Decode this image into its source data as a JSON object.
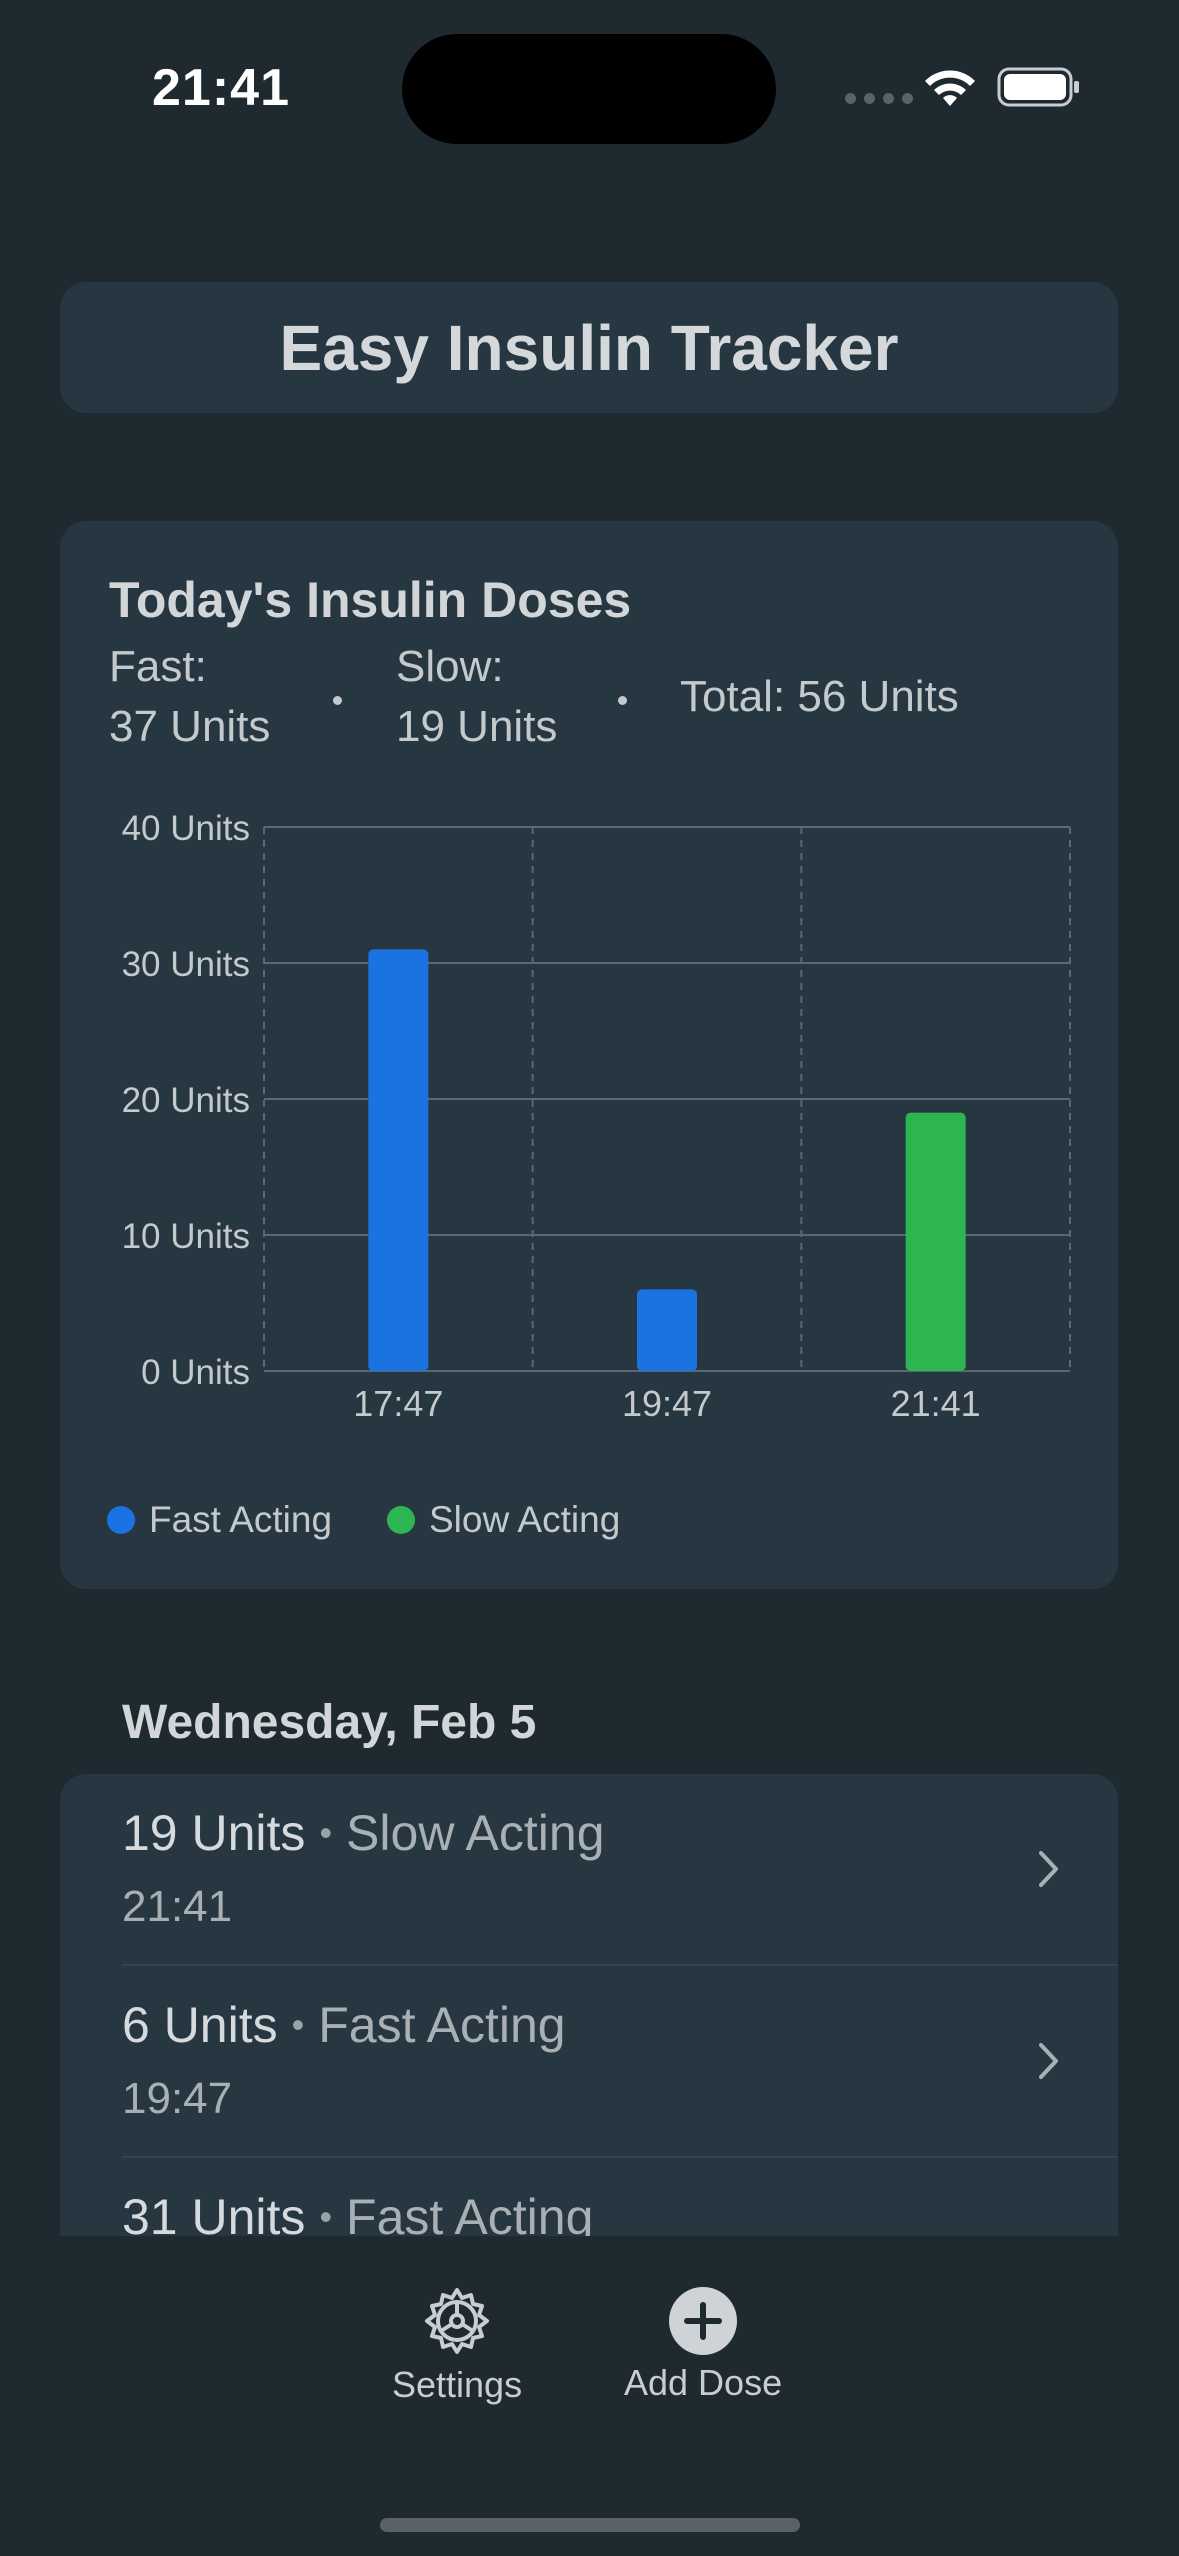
{
  "status_bar": {
    "time": "21:41"
  },
  "app": {
    "title": "Easy Insulin Tracker"
  },
  "summary": {
    "heading": "Today's Insulin Doses",
    "fast_label": "Fast:",
    "fast_value": "37 Units",
    "slow_label": "Slow:",
    "slow_value": "19 Units",
    "total": "Total: 56 Units"
  },
  "chart_data": {
    "type": "bar",
    "categories": [
      "17:47",
      "19:47",
      "21:41"
    ],
    "series": [
      {
        "name": "Fast Acting",
        "color": "#1a73e0",
        "values": [
          31,
          6,
          null
        ]
      },
      {
        "name": "Slow Acting",
        "color": "#2db552",
        "values": [
          null,
          null,
          19
        ]
      }
    ],
    "y_ticks": [
      "0 Units",
      "10 Units",
      "20 Units",
      "30 Units",
      "40 Units"
    ],
    "ylim": [
      0,
      40
    ],
    "grid": true,
    "legend_placement": "bottom-left"
  },
  "list": {
    "section_header": "Wednesday, Feb 5",
    "bullet": "•",
    "rows": [
      {
        "amount": "19 Units",
        "type": "Slow Acting",
        "time": "21:41"
      },
      {
        "amount": "6 Units",
        "type": "Fast Acting",
        "time": "19:47"
      },
      {
        "amount": "31 Units",
        "type": "Fast Acting",
        "time": ""
      }
    ]
  },
  "tab_bar": {
    "settings": {
      "label": "Settings",
      "icon": "gear-icon"
    },
    "add_dose": {
      "label": "Add Dose",
      "icon": "plus-circle-icon"
    }
  }
}
